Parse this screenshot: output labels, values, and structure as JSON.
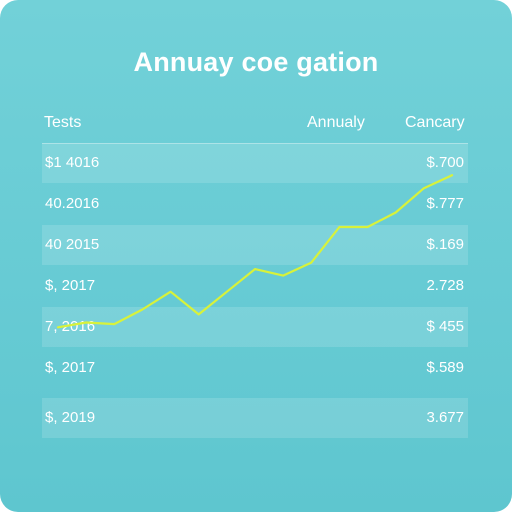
{
  "card": {
    "title": "Annuay coe gation"
  },
  "table": {
    "headers": {
      "tests": "Tests",
      "annual": "Annualy",
      "cancary": "Cancary"
    },
    "rows": [
      {
        "left": "$1 4016",
        "right": "$.700",
        "band": true
      },
      {
        "left": "40.2016",
        "right": "$.777",
        "band": false
      },
      {
        "left": "40 2015",
        "right": "$.169",
        "band": true
      },
      {
        "left": "$, 2017",
        "right": "2.728",
        "band": false
      },
      {
        "left": "7, 2016",
        "right": "$ 455",
        "band": true
      },
      {
        "left": "$, 2017",
        "right": "$.589",
        "band": false
      },
      {
        "left": "$, 2019",
        "right": "3.677",
        "band": true
      }
    ]
  },
  "colors": {
    "background": "#67cbd4",
    "line": "#d8f23a",
    "text": "#ffffff"
  },
  "chart_data": {
    "type": "line",
    "x": [
      1,
      2,
      3,
      4,
      5,
      6,
      7,
      8,
      9,
      10,
      11,
      12,
      13,
      14,
      15
    ],
    "y": [
      14,
      17,
      16,
      25,
      36,
      22,
      36,
      50,
      46,
      54,
      76,
      76,
      85,
      100,
      108
    ],
    "xlim": [
      1,
      15
    ],
    "ylim": [
      0,
      110
    ],
    "grid": false,
    "legend": "none"
  }
}
